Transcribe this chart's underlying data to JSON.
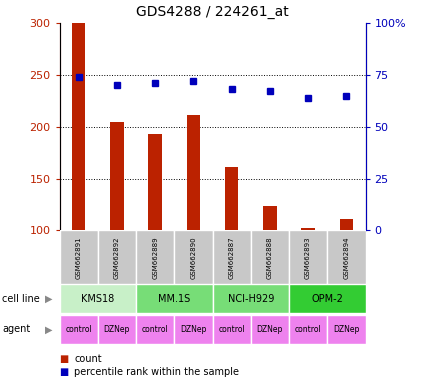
{
  "title": "GDS4288 / 224261_at",
  "samples": [
    "GSM662891",
    "GSM662892",
    "GSM662889",
    "GSM662890",
    "GSM662887",
    "GSM662888",
    "GSM662893",
    "GSM662894"
  ],
  "counts": [
    300,
    205,
    193,
    211,
    161,
    124,
    102,
    111
  ],
  "percentile_ranks": [
    74,
    70,
    71,
    72,
    68,
    67,
    64,
    65
  ],
  "cell_lines": [
    {
      "name": "KMS18",
      "start": 0,
      "end": 2,
      "color": "#c8f0c8"
    },
    {
      "name": "MM.1S",
      "start": 2,
      "end": 4,
      "color": "#77dd77"
    },
    {
      "name": "NCI-H929",
      "start": 4,
      "end": 6,
      "color": "#77dd77"
    },
    {
      "name": "OPM-2",
      "start": 6,
      "end": 8,
      "color": "#33cc33"
    }
  ],
  "agents": [
    "control",
    "DZNep",
    "control",
    "DZNep",
    "control",
    "DZNep",
    "control",
    "DZNep"
  ],
  "agent_color": "#ee82ee",
  "sample_bg_color": "#c8c8c8",
  "bar_color": "#bb2200",
  "dot_color": "#0000bb",
  "ylim_left": [
    100,
    300
  ],
  "ylim_right": [
    0,
    100
  ],
  "yticks_left": [
    100,
    150,
    200,
    250,
    300
  ],
  "yticks_right": [
    0,
    25,
    50,
    75,
    100
  ],
  "ytick_labels_right": [
    "0",
    "25",
    "50",
    "75",
    "100%"
  ],
  "grid_values": [
    150,
    200,
    250
  ],
  "legend_count": "count",
  "legend_pct": "percentile rank within the sample",
  "bar_width": 0.35
}
